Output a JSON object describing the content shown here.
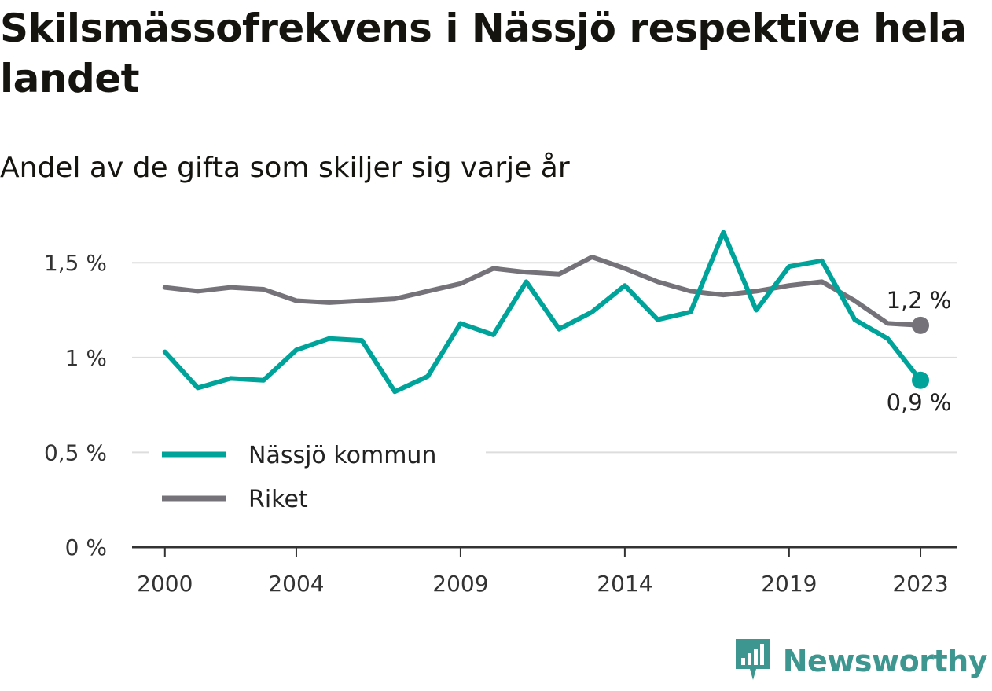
{
  "title": "Skilsmässofrekvens i Nässjö respektive hela landet",
  "subtitle": "Andel av de gifta som skiljer sig varje år",
  "brand": {
    "name": "Newsworthy",
    "icon": "newsworthy-logo-icon",
    "color": "#3d9690"
  },
  "chart_data": {
    "type": "line",
    "x_ticks": [
      "2000",
      "2004",
      "2009",
      "2014",
      "2019",
      "2023"
    ],
    "y_ticks": [
      {
        "value": 0,
        "label": "0 %"
      },
      {
        "value": 0.5,
        "label": "0,5 %"
      },
      {
        "value": 1.0,
        "label": "1 %"
      },
      {
        "value": 1.5,
        "label": "1,5 %"
      }
    ],
    "ylim": [
      0,
      1.7
    ],
    "xlim": [
      1999,
      2024.1
    ],
    "grid": true,
    "legend_position": "left, inside plot",
    "x": [
      2000,
      2001,
      2002,
      2003,
      2004,
      2005,
      2006,
      2007,
      2008,
      2009,
      2010,
      2011,
      2012,
      2013,
      2014,
      2015,
      2016,
      2017,
      2018,
      2019,
      2020,
      2021,
      2022,
      2023
    ],
    "series": [
      {
        "name": "Nässjö kommun",
        "color": "#00a39a",
        "values": [
          1.03,
          0.84,
          0.89,
          0.88,
          1.04,
          1.1,
          1.09,
          0.82,
          0.9,
          1.18,
          1.12,
          1.4,
          1.15,
          1.24,
          1.38,
          1.2,
          1.24,
          1.66,
          1.25,
          1.48,
          1.51,
          1.2,
          1.1,
          0.88
        ],
        "end_label": "0,9 %"
      },
      {
        "name": "Riket",
        "color": "#757379",
        "values": [
          1.37,
          1.35,
          1.37,
          1.36,
          1.3,
          1.29,
          1.3,
          1.31,
          1.35,
          1.39,
          1.47,
          1.45,
          1.44,
          1.53,
          1.47,
          1.4,
          1.35,
          1.33,
          1.35,
          1.38,
          1.4,
          1.3,
          1.18,
          1.17
        ],
        "end_label": "1,2 %"
      }
    ]
  }
}
